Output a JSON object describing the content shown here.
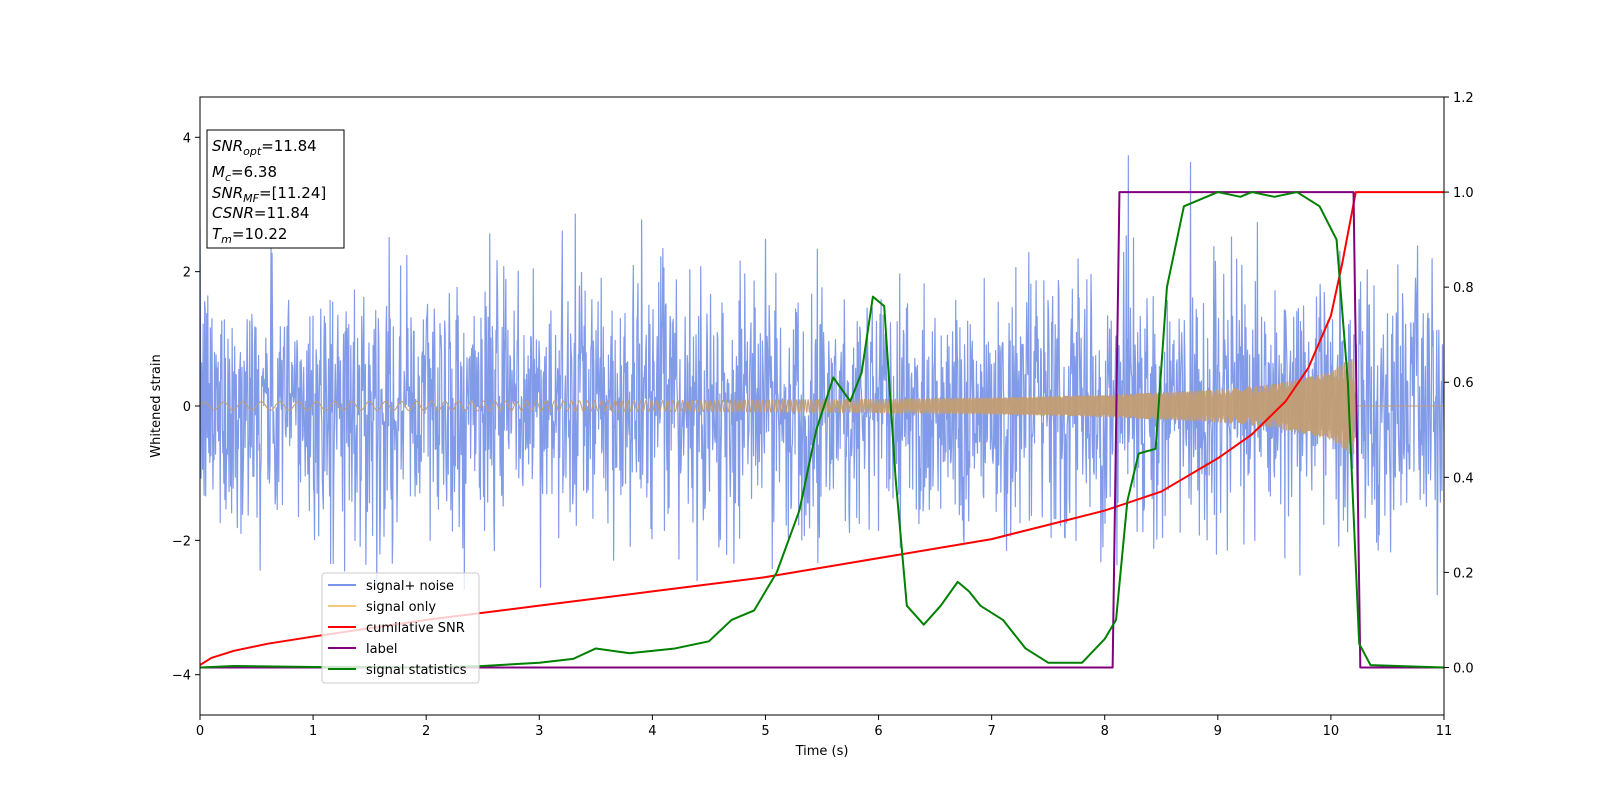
{
  "chart_data": {
    "type": "line",
    "xlabel": "Time (s)",
    "ylabel": "Whitened strain",
    "xlim": [
      0,
      11
    ],
    "ylim_left": [
      -4.6,
      4.6
    ],
    "ylim_right": [
      -0.1,
      1.2
    ],
    "x_ticks": [
      0,
      1,
      2,
      3,
      4,
      5,
      6,
      7,
      8,
      9,
      10,
      11
    ],
    "y_left_ticks": [
      -4,
      -2,
      0,
      2,
      4
    ],
    "y_right_ticks": [
      0.0,
      0.2,
      0.4,
      0.6,
      0.8,
      1.0,
      1.2
    ],
    "annotation": {
      "lines": [
        {
          "base": "SNR",
          "sub": "opt",
          "value": "=11.84"
        },
        {
          "base": "M",
          "sub": "c",
          "value": "=6.38"
        },
        {
          "base": "SNR",
          "sub": "MF",
          "value": "=[11.24]"
        },
        {
          "base": "CSNR",
          "sub": "",
          "value": "=11.84"
        },
        {
          "base": "T",
          "sub": "m",
          "value": "=10.22"
        }
      ]
    },
    "legend": {
      "placement": "lower-left",
      "entries": [
        {
          "label": "signal+ noise",
          "color": "#7b96e8"
        },
        {
          "label": "signal only",
          "color": "#f5c77e"
        },
        {
          "label": "cumilative SNR",
          "color": "#ff0000"
        },
        {
          "label": "label",
          "color": "#800080"
        },
        {
          "label": "signal statistics",
          "color": "#008000"
        }
      ]
    },
    "series": [
      {
        "name": "signal+ noise",
        "axis": "left",
        "color": "#7b96e8",
        "noise_std": 0.95,
        "x_range": [
          0,
          11
        ]
      },
      {
        "name": "signal only",
        "axis": "left",
        "color": "#c29d74",
        "envelope": {
          "x": [
            0,
            2,
            4,
            6,
            7,
            8,
            9,
            9.5,
            10,
            10.2,
            10.22,
            11
          ],
          "amp": [
            0.06,
            0.07,
            0.08,
            0.1,
            0.12,
            0.16,
            0.24,
            0.32,
            0.5,
            0.75,
            0.0,
            0.0
          ]
        }
      },
      {
        "name": "cumilative SNR",
        "axis": "right",
        "color": "#ff0000",
        "x": [
          0,
          0.1,
          0.3,
          0.6,
          1,
          2,
          3,
          4,
          5,
          6,
          7,
          7.5,
          8,
          8.5,
          9,
          9.3,
          9.6,
          9.8,
          10,
          10.1,
          10.22,
          11
        ],
        "y": [
          0.005,
          0.02,
          0.035,
          0.05,
          0.065,
          0.1,
          0.13,
          0.16,
          0.19,
          0.23,
          0.27,
          0.3,
          0.33,
          0.37,
          0.44,
          0.49,
          0.56,
          0.63,
          0.74,
          0.85,
          1.0,
          1.0
        ]
      },
      {
        "name": "label",
        "axis": "right",
        "color": "#800080",
        "x": [
          0,
          8.07,
          8.13,
          10.2,
          10.26,
          11
        ],
        "y": [
          0,
          0,
          1,
          1,
          0,
          0
        ]
      },
      {
        "name": "signal statistics",
        "axis": "right",
        "color": "#008000",
        "x": [
          0,
          0.3,
          1,
          2,
          2.5,
          3,
          3.3,
          3.5,
          3.8,
          4,
          4.2,
          4.5,
          4.7,
          4.9,
          5.1,
          5.3,
          5.45,
          5.6,
          5.75,
          5.85,
          5.95,
          6.05,
          6.15,
          6.25,
          6.4,
          6.55,
          6.7,
          6.8,
          6.9,
          7.1,
          7.3,
          7.5,
          7.8,
          8.0,
          8.1,
          8.2,
          8.3,
          8.45,
          8.55,
          8.7,
          9.0,
          9.2,
          9.3,
          9.5,
          9.7,
          9.9,
          10.05,
          10.15,
          10.25,
          10.35,
          11
        ],
        "y": [
          0.0,
          0.003,
          0.001,
          0.0,
          0.003,
          0.01,
          0.018,
          0.04,
          0.03,
          0.035,
          0.04,
          0.055,
          0.1,
          0.12,
          0.2,
          0.33,
          0.5,
          0.61,
          0.56,
          0.62,
          0.78,
          0.76,
          0.4,
          0.13,
          0.09,
          0.13,
          0.18,
          0.16,
          0.13,
          0.1,
          0.04,
          0.01,
          0.01,
          0.06,
          0.1,
          0.35,
          0.45,
          0.46,
          0.8,
          0.97,
          1.0,
          0.99,
          1.0,
          0.99,
          1.0,
          0.97,
          0.9,
          0.6,
          0.05,
          0.005,
          0.0
        ]
      }
    ]
  }
}
